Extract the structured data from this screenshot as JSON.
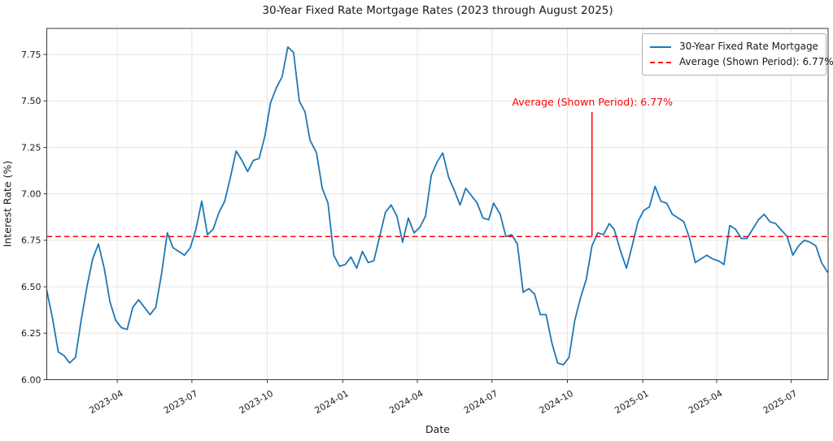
{
  "chart_data": {
    "type": "line",
    "title": "30-Year Fixed Rate Mortgage Rates (2023 through August 2025)",
    "xlabel": "Date",
    "ylabel": "Interest Rate (%)",
    "ylim": [
      6.0,
      7.89
    ],
    "xlim": [
      "2023-01-05",
      "2025-08-15"
    ],
    "grid": true,
    "legend_position": "upper right",
    "y_ticks": [
      "6.00",
      "6.25",
      "6.50",
      "6.75",
      "7.00",
      "7.25",
      "7.50",
      "7.75"
    ],
    "x_ticks": [
      {
        "date": "2023-04-01",
        "label": "2023-04"
      },
      {
        "date": "2023-07-01",
        "label": "2023-07"
      },
      {
        "date": "2023-10-01",
        "label": "2023-10"
      },
      {
        "date": "2024-01-01",
        "label": "2024-01"
      },
      {
        "date": "2024-04-01",
        "label": "2024-04"
      },
      {
        "date": "2024-07-01",
        "label": "2024-07"
      },
      {
        "date": "2024-10-01",
        "label": "2024-10"
      },
      {
        "date": "2025-01-01",
        "label": "2025-01"
      },
      {
        "date": "2025-04-01",
        "label": "2025-04"
      },
      {
        "date": "2025-07-01",
        "label": "2025-07"
      }
    ],
    "series": [
      {
        "name": "30-Year Fixed Rate Mortgage",
        "color": "#1f77b4",
        "style": "solid",
        "points": [
          [
            "2023-01-05",
            6.48
          ],
          [
            "2023-01-12",
            6.33
          ],
          [
            "2023-01-19",
            6.15
          ],
          [
            "2023-01-26",
            6.13
          ],
          [
            "2023-02-02",
            6.09
          ],
          [
            "2023-02-09",
            6.12
          ],
          [
            "2023-02-16",
            6.32
          ],
          [
            "2023-02-23",
            6.5
          ],
          [
            "2023-03-02",
            6.65
          ],
          [
            "2023-03-09",
            6.73
          ],
          [
            "2023-03-16",
            6.6
          ],
          [
            "2023-03-23",
            6.42
          ],
          [
            "2023-03-30",
            6.32
          ],
          [
            "2023-04-06",
            6.28
          ],
          [
            "2023-04-13",
            6.27
          ],
          [
            "2023-04-20",
            6.39
          ],
          [
            "2023-04-27",
            6.43
          ],
          [
            "2023-05-04",
            6.39
          ],
          [
            "2023-05-11",
            6.35
          ],
          [
            "2023-05-18",
            6.39
          ],
          [
            "2023-05-25",
            6.57
          ],
          [
            "2023-06-01",
            6.79
          ],
          [
            "2023-06-08",
            6.71
          ],
          [
            "2023-06-15",
            6.69
          ],
          [
            "2023-06-22",
            6.67
          ],
          [
            "2023-06-29",
            6.71
          ],
          [
            "2023-07-06",
            6.81
          ],
          [
            "2023-07-13",
            6.96
          ],
          [
            "2023-07-20",
            6.78
          ],
          [
            "2023-07-27",
            6.81
          ],
          [
            "2023-08-03",
            6.9
          ],
          [
            "2023-08-10",
            6.96
          ],
          [
            "2023-08-17",
            7.09
          ],
          [
            "2023-08-24",
            7.23
          ],
          [
            "2023-08-31",
            7.18
          ],
          [
            "2023-09-07",
            7.12
          ],
          [
            "2023-09-14",
            7.18
          ],
          [
            "2023-09-21",
            7.19
          ],
          [
            "2023-09-28",
            7.31
          ],
          [
            "2023-10-05",
            7.49
          ],
          [
            "2023-10-12",
            7.57
          ],
          [
            "2023-10-19",
            7.63
          ],
          [
            "2023-10-26",
            7.79
          ],
          [
            "2023-11-02",
            7.76
          ],
          [
            "2023-11-09",
            7.5
          ],
          [
            "2023-11-16",
            7.44
          ],
          [
            "2023-11-22",
            7.29
          ],
          [
            "2023-11-30",
            7.22
          ],
          [
            "2023-12-07",
            7.03
          ],
          [
            "2023-12-14",
            6.95
          ],
          [
            "2023-12-21",
            6.67
          ],
          [
            "2023-12-28",
            6.61
          ],
          [
            "2024-01-04",
            6.62
          ],
          [
            "2024-01-11",
            6.66
          ],
          [
            "2024-01-18",
            6.6
          ],
          [
            "2024-01-25",
            6.69
          ],
          [
            "2024-02-01",
            6.63
          ],
          [
            "2024-02-08",
            6.64
          ],
          [
            "2024-02-15",
            6.77
          ],
          [
            "2024-02-22",
            6.9
          ],
          [
            "2024-02-29",
            6.94
          ],
          [
            "2024-03-07",
            6.88
          ],
          [
            "2024-03-14",
            6.74
          ],
          [
            "2024-03-21",
            6.87
          ],
          [
            "2024-03-28",
            6.79
          ],
          [
            "2024-04-04",
            6.82
          ],
          [
            "2024-04-11",
            6.88
          ],
          [
            "2024-04-18",
            7.1
          ],
          [
            "2024-04-25",
            7.17
          ],
          [
            "2024-05-02",
            7.22
          ],
          [
            "2024-05-09",
            7.09
          ],
          [
            "2024-05-16",
            7.02
          ],
          [
            "2024-05-23",
            6.94
          ],
          [
            "2024-05-30",
            7.03
          ],
          [
            "2024-06-06",
            6.99
          ],
          [
            "2024-06-13",
            6.95
          ],
          [
            "2024-06-20",
            6.87
          ],
          [
            "2024-06-27",
            6.86
          ],
          [
            "2024-07-03",
            6.95
          ],
          [
            "2024-07-11",
            6.89
          ],
          [
            "2024-07-18",
            6.77
          ],
          [
            "2024-07-25",
            6.78
          ],
          [
            "2024-08-01",
            6.73
          ],
          [
            "2024-08-08",
            6.47
          ],
          [
            "2024-08-15",
            6.49
          ],
          [
            "2024-08-22",
            6.46
          ],
          [
            "2024-08-29",
            6.35
          ],
          [
            "2024-09-05",
            6.35
          ],
          [
            "2024-09-12",
            6.2
          ],
          [
            "2024-09-19",
            6.09
          ],
          [
            "2024-09-26",
            6.08
          ],
          [
            "2024-10-03",
            6.12
          ],
          [
            "2024-10-10",
            6.32
          ],
          [
            "2024-10-17",
            6.44
          ],
          [
            "2024-10-24",
            6.54
          ],
          [
            "2024-10-31",
            6.72
          ],
          [
            "2024-11-07",
            6.79
          ],
          [
            "2024-11-14",
            6.78
          ],
          [
            "2024-11-21",
            6.84
          ],
          [
            "2024-11-27",
            6.81
          ],
          [
            "2024-12-05",
            6.69
          ],
          [
            "2024-12-12",
            6.6
          ],
          [
            "2024-12-19",
            6.72
          ],
          [
            "2024-12-26",
            6.85
          ],
          [
            "2025-01-02",
            6.91
          ],
          [
            "2025-01-09",
            6.93
          ],
          [
            "2025-01-16",
            7.04
          ],
          [
            "2025-01-23",
            6.96
          ],
          [
            "2025-01-30",
            6.95
          ],
          [
            "2025-02-06",
            6.89
          ],
          [
            "2025-02-13",
            6.87
          ],
          [
            "2025-02-20",
            6.85
          ],
          [
            "2025-02-27",
            6.76
          ],
          [
            "2025-03-06",
            6.63
          ],
          [
            "2025-03-13",
            6.65
          ],
          [
            "2025-03-20",
            6.67
          ],
          [
            "2025-03-27",
            6.65
          ],
          [
            "2025-04-03",
            6.64
          ],
          [
            "2025-04-10",
            6.62
          ],
          [
            "2025-04-17",
            6.83
          ],
          [
            "2025-04-24",
            6.81
          ],
          [
            "2025-05-01",
            6.76
          ],
          [
            "2025-05-08",
            6.76
          ],
          [
            "2025-05-15",
            6.81
          ],
          [
            "2025-05-22",
            6.86
          ],
          [
            "2025-05-29",
            6.89
          ],
          [
            "2025-06-05",
            6.85
          ],
          [
            "2025-06-12",
            6.84
          ],
          [
            "2025-06-18",
            6.81
          ],
          [
            "2025-06-26",
            6.77
          ],
          [
            "2025-07-03",
            6.67
          ],
          [
            "2025-07-10",
            6.72
          ],
          [
            "2025-07-17",
            6.75
          ],
          [
            "2025-07-24",
            6.74
          ],
          [
            "2025-07-31",
            6.72
          ],
          [
            "2025-08-07",
            6.63
          ],
          [
            "2025-08-14",
            6.58
          ]
        ]
      }
    ],
    "average_line": {
      "value": 6.77,
      "color": "#ff0000",
      "style": "dashed"
    },
    "annotation": {
      "text": "Average (Shown Period): 6.77%",
      "color": "#ff0000",
      "anchor_date": "2024-10-31",
      "line_top_value": 7.44,
      "points_to_value": 6.77
    }
  },
  "legend": {
    "items": [
      {
        "label": "30-Year Fixed Rate Mortgage",
        "color": "#1f77b4",
        "dash": "solid"
      },
      {
        "label": "Average (Shown Period): 6.77%",
        "color": "#ff0000",
        "dash": "dashed"
      }
    ]
  }
}
